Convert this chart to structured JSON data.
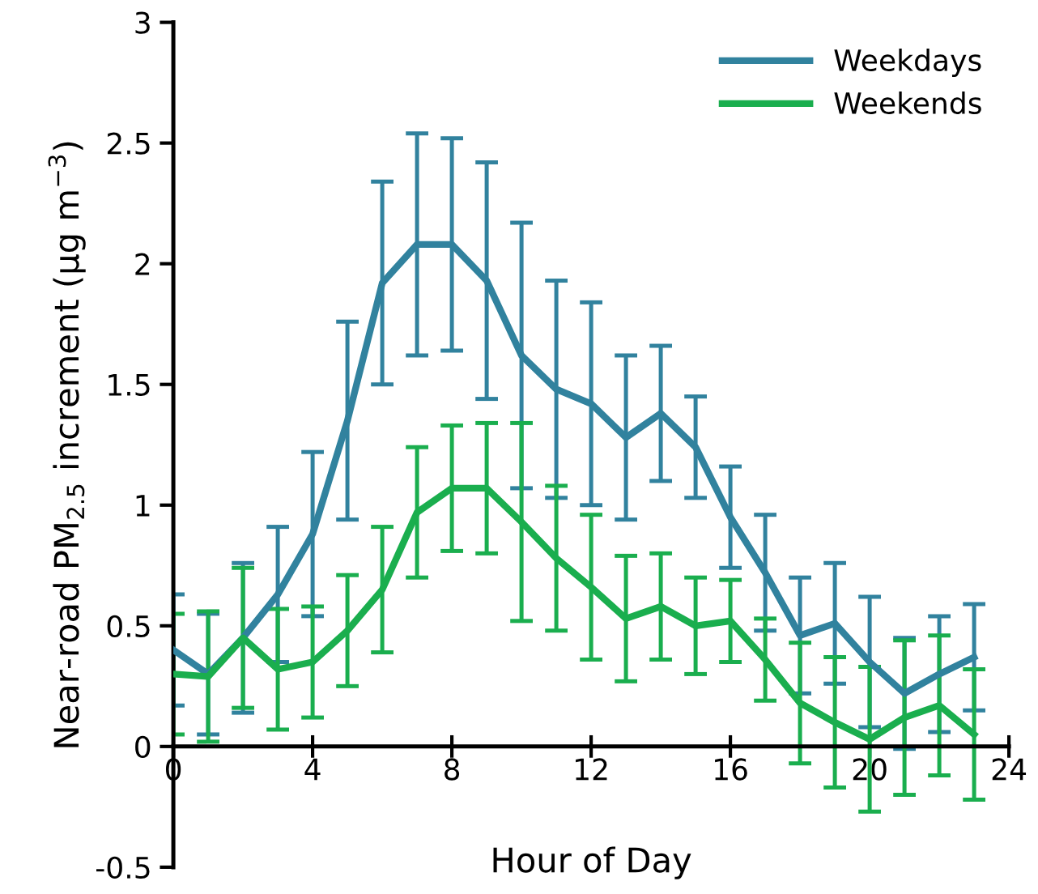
{
  "chart_data": {
    "type": "line",
    "xlabel": "Hour of Day",
    "ylabel": "Near-road PM$_{2.5}$ increment (µg m$^{−3}$)",
    "x": [
      0,
      1,
      2,
      3,
      4,
      5,
      6,
      7,
      8,
      9,
      10,
      11,
      12,
      13,
      14,
      15,
      16,
      17,
      18,
      19,
      20,
      21,
      22,
      23
    ],
    "series": [
      {
        "name": "Weekdays",
        "color": "#31829e",
        "values": [
          0.4,
          0.3,
          0.45,
          0.63,
          0.88,
          1.35,
          1.92,
          2.08,
          2.08,
          1.93,
          1.62,
          1.48,
          1.42,
          1.28,
          1.38,
          1.24,
          0.95,
          0.72,
          0.46,
          0.51,
          0.35,
          0.22,
          0.3,
          0.37
        ],
        "errors": [
          0.23,
          0.25,
          0.31,
          0.28,
          0.34,
          0.41,
          0.42,
          0.46,
          0.44,
          0.49,
          0.55,
          0.45,
          0.42,
          0.34,
          0.28,
          0.21,
          0.21,
          0.24,
          0.24,
          0.25,
          0.27,
          0.23,
          0.24,
          0.22
        ]
      },
      {
        "name": "Weekends",
        "color": "#1aae4e",
        "values": [
          0.3,
          0.29,
          0.45,
          0.32,
          0.35,
          0.48,
          0.65,
          0.97,
          1.07,
          1.07,
          0.93,
          0.78,
          0.66,
          0.53,
          0.58,
          0.5,
          0.52,
          0.36,
          0.18,
          0.1,
          0.03,
          0.12,
          0.17,
          0.05
        ],
        "errors": [
          0.25,
          0.27,
          0.29,
          0.25,
          0.23,
          0.23,
          0.26,
          0.27,
          0.26,
          0.27,
          0.41,
          0.3,
          0.3,
          0.26,
          0.22,
          0.2,
          0.17,
          0.17,
          0.25,
          0.27,
          0.3,
          0.32,
          0.29,
          0.27
        ]
      }
    ],
    "xlim": [
      0,
      24
    ],
    "xticks": [
      0,
      4,
      8,
      12,
      16,
      20,
      24
    ],
    "ylim": [
      -0.5,
      3
    ],
    "yticks": [
      -0.5,
      0,
      0.5,
      1,
      1.5,
      2,
      2.5,
      3
    ],
    "grid": false,
    "legend": "top right",
    "marker": "none",
    "line_style": "solid"
  }
}
